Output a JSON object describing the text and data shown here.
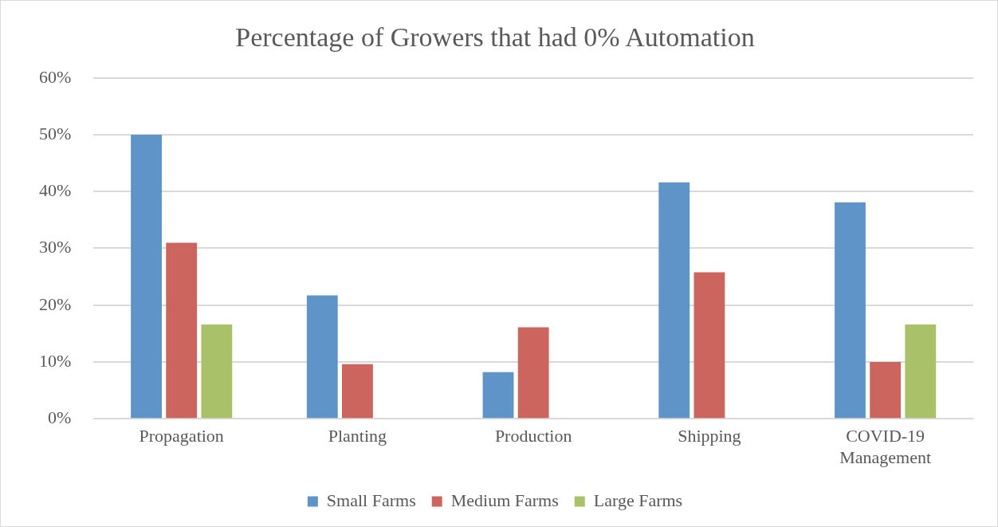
{
  "chart_data": {
    "type": "bar",
    "title": "Percentage of Growers that had 0% Automation",
    "categories": [
      "Propagation",
      "Planting",
      "Production",
      "Shipping",
      "COVID-19 Management"
    ],
    "series": [
      {
        "name": "Small Farms",
        "color": "#5f94c8",
        "values": [
          50,
          21.7,
          8.2,
          41.6,
          38.1
        ]
      },
      {
        "name": "Medium Farms",
        "color": "#cc655e",
        "values": [
          31,
          9.6,
          16.1,
          25.8,
          10
        ]
      },
      {
        "name": "Large Farms",
        "color": "#a9c26a",
        "values": [
          16.6,
          0,
          0,
          0,
          16.6
        ]
      }
    ],
    "ylim": [
      0,
      60
    ],
    "yticks": [
      {
        "value": 0,
        "label": "0%"
      },
      {
        "value": 10,
        "label": "10%"
      },
      {
        "value": 20,
        "label": "20%"
      },
      {
        "value": 30,
        "label": "30%"
      },
      {
        "value": 40,
        "label": "40%"
      },
      {
        "value": 50,
        "label": "50%"
      },
      {
        "value": 60,
        "label": "60%"
      }
    ],
    "grid": "y",
    "legend": "bottom"
  }
}
